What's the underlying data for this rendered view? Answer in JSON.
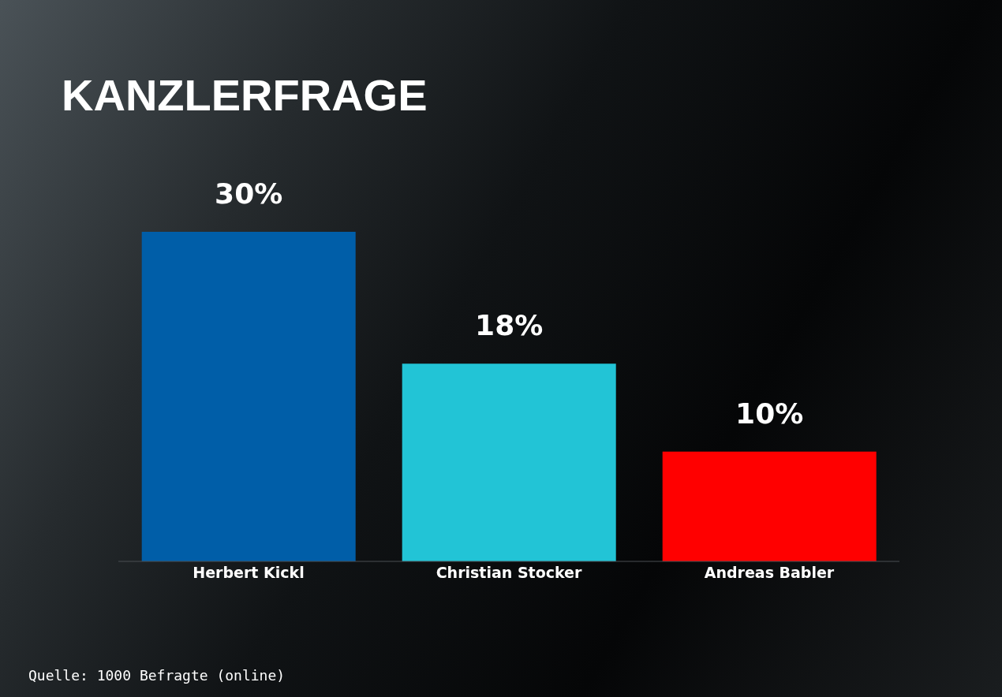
{
  "chart_data": {
    "type": "bar",
    "title": "KANZLERFRAGE",
    "categories": [
      "Herbert Kickl",
      "Christian Stocker",
      "Andreas Babler"
    ],
    "values": [
      30,
      18,
      10
    ],
    "colors": [
      "#005ea8",
      "#22c4d6",
      "#ff0000"
    ],
    "value_labels": [
      "30%",
      "18%",
      "10%"
    ],
    "ylim": [
      0,
      30
    ],
    "tick_labels": "x",
    "annotations": [
      "Quelle: 1000 Befragte (online)"
    ]
  }
}
